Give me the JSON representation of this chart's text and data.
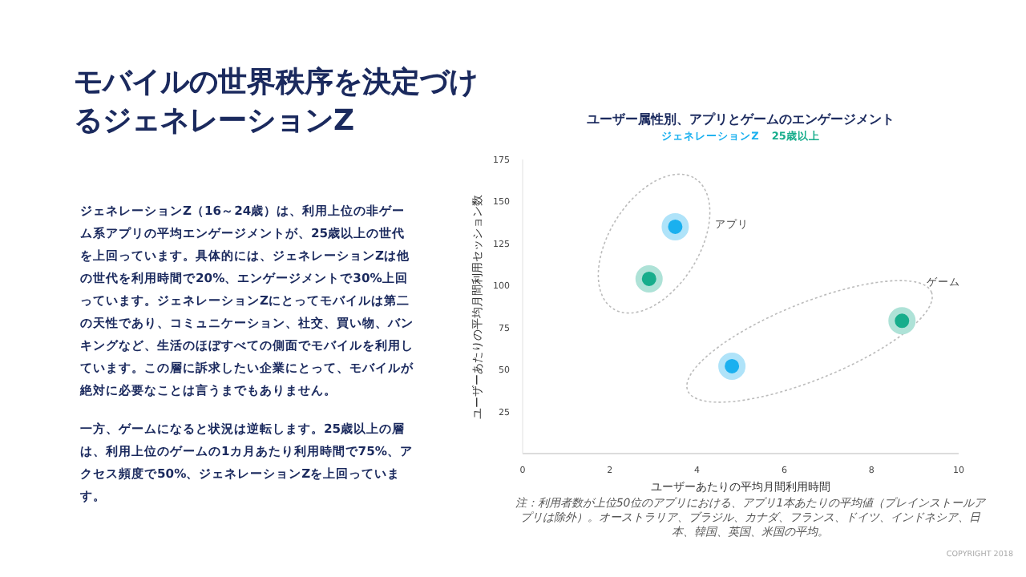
{
  "chart_data": {
    "type": "scatter",
    "title": "ユーザー属性別、アプリとゲームのエンゲージメント",
    "xlabel": "ユーザーあたりの平均月間利用時間",
    "ylabel": "ユーザーあたりの平均月間利用セッション数",
    "xlim": [
      0,
      10
    ],
    "xticks": [
      0,
      2,
      4,
      6,
      8,
      10
    ],
    "ylim": [
      0,
      175
    ],
    "yticks": [
      25,
      50,
      75,
      100,
      125,
      150,
      175
    ],
    "legend": "top",
    "marker": "circle",
    "grid": false,
    "series": [
      {
        "name": "ジェネレーションZ",
        "color": "#1ab0ef",
        "x": [
          3.5,
          4.8
        ],
        "values": [
          135,
          52
        ]
      },
      {
        "name": "25歳以上",
        "color": "#17ad8c",
        "x": [
          2.9,
          8.7
        ],
        "values": [
          104,
          79
        ]
      }
    ],
    "annotations": [
      "モバイルの世界秩序を決定づけるジェネレーションZ",
      "ジェネレーションZ（16～24歳）は、利用上位の非ゲーム系アプリの平均エンゲージメントが、25歳以上の世代を上回っています。具体的には、ジェネレーションZは他の世代を利用時間で20%、エンゲージメントで30%上回っています。ジェネレーションZにとってモバイルは第二の天性であり、コミュニケーション、社交、買い物、バンキングなど、生活のほぼすべての側面でモバイルを利用しています。この層に訴求したい企業にとって、モバイルが絶対に必要なことは言うまでもありません。",
      "一方、ゲームになると状況は逆転します。25歳以上の層は、利用上位のゲームの1カ月あたり利用時間で75%、アクセス頻度で50%、ジェネレーションZを上回っています。",
      "アプリ",
      "ゲーム",
      "注：利用者数が上位50位のアプリにおける、アプリ1本あたりの平均値（プレインストールアプリは除外）。オーストラリア、ブラジル、カナダ、フランス、ドイツ、インドネシア、日本、韓国、英国、米国の平均。",
      "COPYRIGHT 2018"
    ]
  }
}
